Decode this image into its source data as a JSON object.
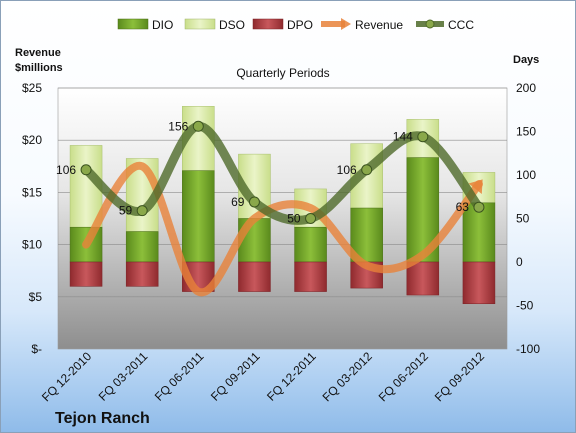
{
  "chart_data": {
    "type": "bar",
    "company": "Tejon Ranch",
    "title": "Quarterly Periods",
    "ylabel_left": [
      "Revenue",
      "$millions"
    ],
    "ylabel_right": "Days",
    "categories": [
      "FQ 12-2010",
      "FQ 03-2011",
      "FQ 06-2011",
      "FQ 09-2011",
      "FQ 12-2011",
      "FQ 03-2012",
      "FQ 06-2012",
      "FQ 09-2012"
    ],
    "ylim_left": [
      0,
      25
    ],
    "ylim_right": [
      -100,
      200
    ],
    "left_ticks": [
      "$-",
      "$5",
      "$10",
      "$15",
      "$20",
      "$25"
    ],
    "right_ticks": [
      "-100",
      "-50",
      "0",
      "50",
      "100",
      "150",
      "200"
    ],
    "series": [
      {
        "name": "DIO",
        "axis": "right",
        "values": [
          40,
          35,
          105,
          50,
          40,
          62,
          120,
          68
        ],
        "color": "#6e9a25"
      },
      {
        "name": "DSO",
        "axis": "right",
        "values": [
          94,
          84,
          74,
          74,
          44,
          74,
          44,
          35
        ],
        "color": "#d4e6a2"
      },
      {
        "name": "DPO",
        "axis": "right",
        "values": [
          -28,
          -28,
          -34,
          -34,
          -34,
          -30,
          -38,
          -48
        ],
        "color": "#a83a3e"
      },
      {
        "name": "Revenue",
        "axis": "left",
        "values": [
          10,
          17.5,
          5.5,
          12.5,
          13.5,
          8,
          9,
          15.8
        ],
        "color": "#e8823a"
      },
      {
        "name": "CCC",
        "axis": "right",
        "values": [
          106,
          59,
          156,
          69,
          50,
          106,
          144,
          63
        ],
        "color": "#4f6a2a"
      }
    ],
    "data_labels": [
      "106",
      "59",
      "156",
      "69",
      "50",
      "106",
      "144",
      "63"
    ],
    "legend_position": "top"
  }
}
